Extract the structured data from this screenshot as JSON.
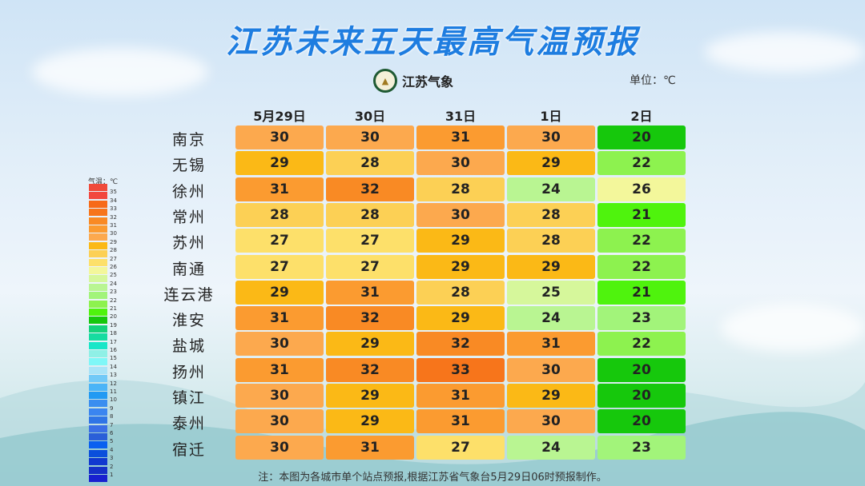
{
  "title": "江苏未来五天最高气温预报",
  "logo_text": "江苏气象",
  "unit_label": "单位：℃",
  "columns": [
    "5月29日",
    "30日",
    "31日",
    "1日",
    "2日"
  ],
  "rows": [
    {
      "city": "南京",
      "values": [
        30,
        30,
        31,
        30,
        20
      ]
    },
    {
      "city": "无锡",
      "values": [
        29,
        28,
        30,
        29,
        22
      ]
    },
    {
      "city": "徐州",
      "values": [
        31,
        32,
        28,
        24,
        26
      ]
    },
    {
      "city": "常州",
      "values": [
        28,
        28,
        30,
        28,
        21
      ]
    },
    {
      "city": "苏州",
      "values": [
        27,
        27,
        29,
        28,
        22
      ]
    },
    {
      "city": "南通",
      "values": [
        27,
        27,
        29,
        29,
        22
      ]
    },
    {
      "city": "连云港",
      "values": [
        29,
        31,
        28,
        25,
        21
      ]
    },
    {
      "city": "淮安",
      "values": [
        31,
        32,
        29,
        24,
        23
      ]
    },
    {
      "city": "盐城",
      "values": [
        30,
        29,
        32,
        31,
        22
      ]
    },
    {
      "city": "扬州",
      "values": [
        31,
        32,
        33,
        30,
        20
      ]
    },
    {
      "city": "镇江",
      "values": [
        30,
        29,
        31,
        29,
        20
      ]
    },
    {
      "city": "泰州",
      "values": [
        30,
        29,
        31,
        30,
        20
      ]
    },
    {
      "city": "宿迁",
      "values": [
        30,
        31,
        27,
        24,
        23
      ]
    }
  ],
  "legend": {
    "title": "气温：℃",
    "top_color": "#f04a3a",
    "levels": [
      35,
      34,
      33,
      32,
      31,
      30,
      29,
      28,
      27,
      26,
      25,
      24,
      23,
      22,
      21,
      20,
      19,
      18,
      17,
      16,
      15,
      14,
      13,
      12,
      11,
      10,
      9,
      8,
      7,
      6,
      5,
      4,
      3,
      2,
      1
    ],
    "colors": {
      "35": "#f2473f",
      "34": "#f76a18",
      "33": "#f7751b",
      "32": "#f98a24",
      "31": "#fb9b30",
      "30": "#fca94e",
      "29": "#fbb916",
      "28": "#fcd055",
      "27": "#fde06a",
      "26": "#f3f79b",
      "25": "#d6f79b",
      "24": "#b9f592",
      "23": "#a2f47a",
      "22": "#8df24f",
      "21": "#4ff30d",
      "20": "#16c80c",
      "19": "#14d27a",
      "18": "#16dca0",
      "17": "#19e6c8",
      "16": "#8ff0e6",
      "15": "#7ff7f7",
      "14": "#a9e3f7",
      "13": "#72c9f7",
      "12": "#4ab4f7",
      "11": "#219af3",
      "10": "#3a8ef0",
      "9": "#3a85f0",
      "8": "#2f75e6",
      "7": "#3a6fe6",
      "6": "#2a5fd8",
      "5": "#0a60f0",
      "4": "#0a4fdc",
      "3": "#1038d0",
      "2": "#1530c8",
      "1": "#1820d0"
    }
  },
  "footer": "注：本图为各城市单个站点预报,根据江苏省气象台5月29日06时预报制作。"
}
